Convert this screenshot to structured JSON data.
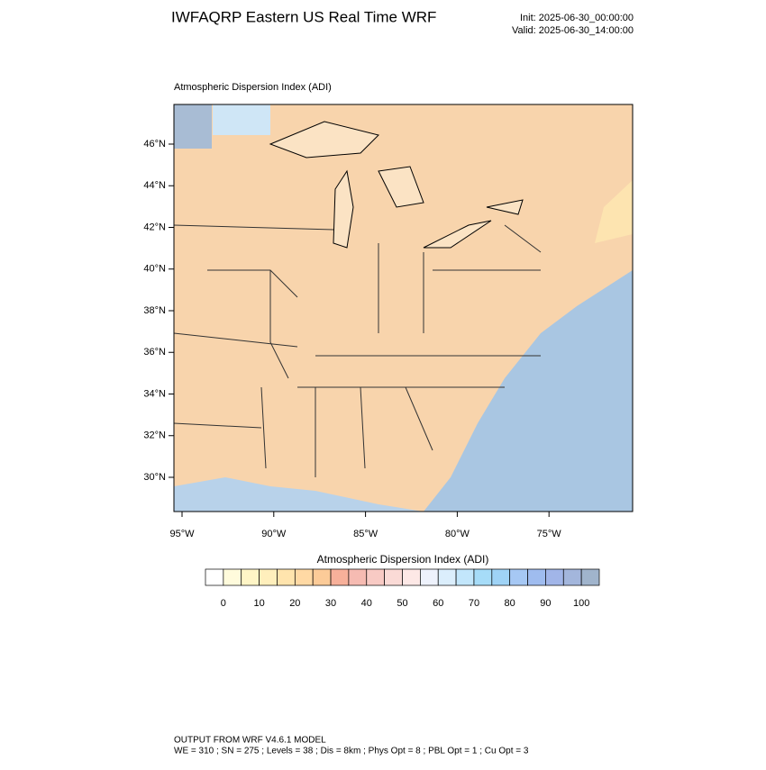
{
  "header": {
    "title": "IWFAQRP Eastern US Real Time WRF",
    "init": "Init: 2025-06-30_00:00:00",
    "valid": "Valid: 2025-06-30_14:00:00"
  },
  "map": {
    "title": "Atmospheric Dispersion Index   (ADI)",
    "lat_labels": [
      "46°N",
      "44°N",
      "42°N",
      "40°N",
      "38°N",
      "36°N",
      "34°N",
      "32°N",
      "30°N"
    ],
    "lon_labels": [
      "95°W",
      "90°W",
      "85°W",
      "80°W",
      "75°W"
    ]
  },
  "colorbar": {
    "title": "Atmospheric Dispersion Index  (ADI)",
    "ticks": [
      0,
      10,
      20,
      30,
      40,
      50,
      60,
      70,
      80,
      90,
      100
    ],
    "colors": [
      "#ffffff",
      "#fffbdc",
      "#fff5c6",
      "#ffefbc",
      "#ffe4ad",
      "#ffd9a4",
      "#fccb98",
      "#f7b09a",
      "#f6bbb2",
      "#f8cac4",
      "#fadad6",
      "#fde8e6",
      "#eef2fc",
      "#dbeefc",
      "#c2e6fb",
      "#a6dcf8",
      "#9fd3f6",
      "#a6c8f4",
      "#9fbcef",
      "#a1b5e8",
      "#a3b6dc",
      "#a0b4cc"
    ]
  },
  "footer": {
    "line1": "OUTPUT FROM WRF V4.6.1 MODEL",
    "line2": "WE = 310 ; SN = 275 ; Levels = 38 ; Dis = 8km ; Phys Opt = 8 ; PBL Opt = 1 ; Cu Opt = 3"
  }
}
